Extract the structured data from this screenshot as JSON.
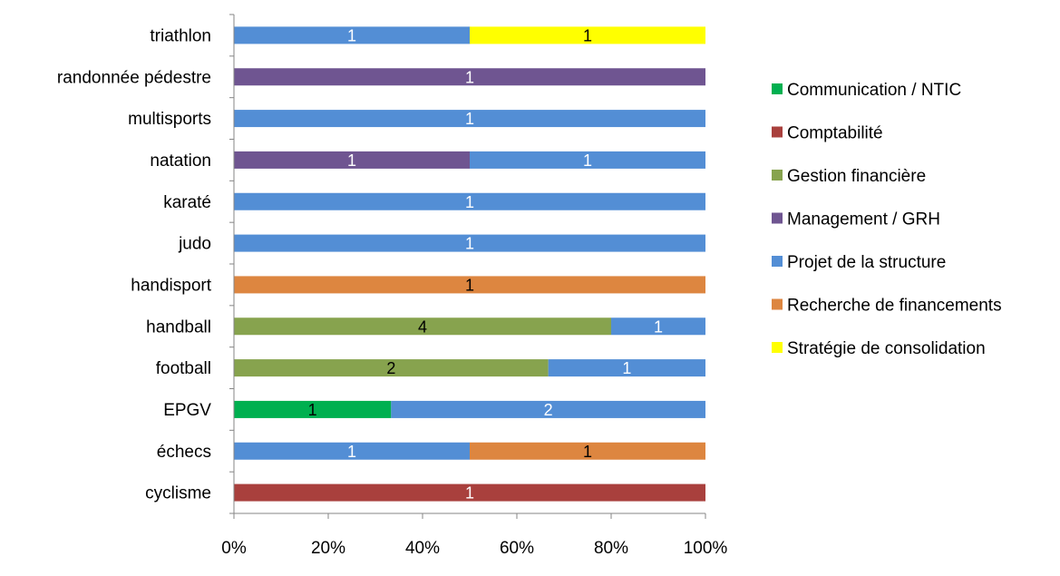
{
  "chart_data": {
    "type": "bar",
    "orientation": "horizontal",
    "stacked": "percent",
    "categories": [
      "cyclisme",
      "échecs",
      "EPGV",
      "football",
      "handball",
      "handisport",
      "judo",
      "karaté",
      "natation",
      "multisports",
      "randonnée pédestre",
      "triathlon"
    ],
    "series": [
      {
        "name": "Communication / NTIC",
        "color": "#00b050",
        "label_color": "#000000",
        "values": [
          0,
          0,
          1,
          0,
          0,
          0,
          0,
          0,
          0,
          0,
          0,
          0
        ]
      },
      {
        "name": "Comptabilité",
        "color": "#a9403d",
        "label_color": "#ffffff",
        "values": [
          1,
          0,
          0,
          0,
          0,
          0,
          0,
          0,
          0,
          0,
          0,
          0
        ]
      },
      {
        "name": "Gestion financière",
        "color": "#87a34e",
        "label_color": "#000000",
        "values": [
          0,
          0,
          0,
          2,
          4,
          0,
          0,
          0,
          0,
          0,
          0,
          0
        ]
      },
      {
        "name": "Management / GRH",
        "color": "#6f5591",
        "label_color": "#ffffff",
        "values": [
          0,
          0,
          0,
          0,
          0,
          0,
          0,
          0,
          1,
          0,
          1,
          0
        ]
      },
      {
        "name": "Projet de la structure",
        "color": "#538ed5",
        "label_color": "#ffffff",
        "values": [
          0,
          1,
          2,
          1,
          1,
          0,
          1,
          1,
          1,
          1,
          0,
          1
        ]
      },
      {
        "name": "Recherche de financements",
        "color": "#dd8640",
        "label_color": "#000000",
        "values": [
          0,
          1,
          0,
          0,
          0,
          1,
          0,
          0,
          0,
          0,
          0,
          0
        ]
      },
      {
        "name": "Stratégie de consolidation",
        "color": "#ffff00",
        "label_color": "#000000",
        "values": [
          0,
          0,
          0,
          0,
          0,
          0,
          0,
          0,
          0,
          0,
          0,
          1
        ]
      }
    ],
    "xticks": [
      "0%",
      "20%",
      "40%",
      "60%",
      "80%",
      "100%"
    ],
    "xlim": [
      0,
      100
    ],
    "grid": false,
    "legend_position": "right"
  }
}
